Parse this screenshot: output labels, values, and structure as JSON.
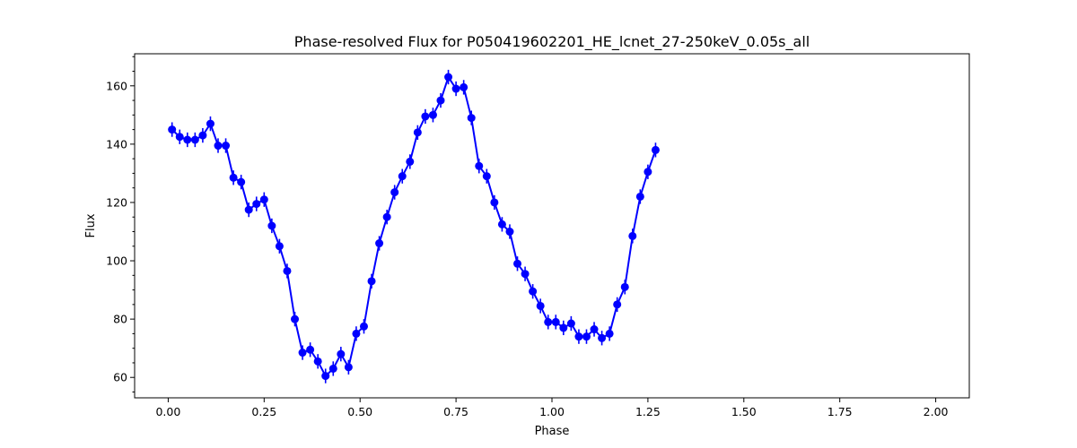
{
  "chart_data": {
    "type": "line",
    "title": "Phase-resolved Flux for P050419602201_HE_lcnet_27-250keV_0.05s_all",
    "xlabel": "Phase",
    "ylabel": "Flux",
    "xlim": [
      -0.0875,
      2.0875
    ],
    "ylim": [
      53,
      171
    ],
    "x_ticks": [
      0.0,
      0.25,
      0.5,
      0.75,
      1.0,
      1.25,
      1.5,
      1.75,
      2.0
    ],
    "x_tick_labels": [
      "0.00",
      "0.25",
      "0.50",
      "0.75",
      "1.00",
      "1.25",
      "1.50",
      "1.75",
      "2.00"
    ],
    "y_ticks": [
      60,
      80,
      100,
      120,
      140,
      160
    ],
    "y_tick_labels": [
      "60",
      "80",
      "100",
      "120",
      "140",
      "160"
    ],
    "grid": false,
    "series_color": "#0000ff",
    "marker": "circle",
    "error_bar": 2.5,
    "series": [
      {
        "phase_start": 0.01,
        "phase_step": 0.02,
        "values": [
          145,
          142.5,
          141.5,
          141.5,
          143,
          147,
          139.5,
          139.5,
          128.5,
          127,
          117.5,
          119.5,
          121,
          112,
          105,
          96.5,
          80,
          68.5,
          69.5,
          65.5,
          60.5,
          63,
          68,
          63.5,
          75,
          77.5,
          93,
          106,
          115,
          123.5,
          129,
          134,
          144,
          149.5,
          150,
          155,
          163,
          159,
          159.5,
          149,
          132.5,
          129,
          120,
          112.5,
          110,
          99,
          95.5,
          89.5,
          84.5,
          79,
          79,
          77,
          78.5,
          74,
          74,
          76.5,
          73.5,
          75,
          85,
          91,
          108.5,
          122,
          130.5,
          138
        ]
      }
    ]
  }
}
